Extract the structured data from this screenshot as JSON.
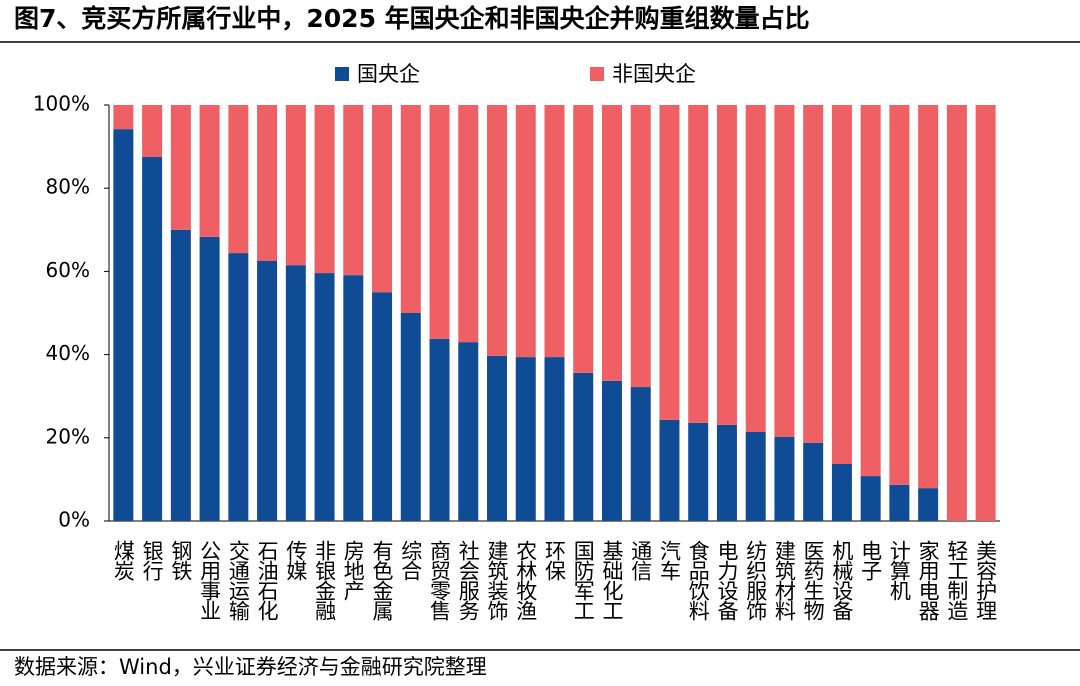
{
  "chart_data": {
    "type": "stacked_bar",
    "title": "图7、竞买方所属行业中，2025 年国央企和非国央企并购重组数量占比",
    "source": "数据来源：Wind，兴业证券经济与金融研究院整理",
    "categories": [
      "煤炭",
      "银行",
      "钢铁",
      "公用事业",
      "交通运输",
      "石油石化",
      "传媒",
      "非银金融",
      "房地产",
      "有色金属",
      "综合",
      "商贸零售",
      "社会服务",
      "建筑装饰",
      "农林牧渔",
      "环保",
      "国防军工",
      "基础化工",
      "通信",
      "汽车",
      "食品饮料",
      "电力设备",
      "纺织服饰",
      "建筑材料",
      "医药生物",
      "机械设备",
      "电子",
      "计算机",
      "家用电器",
      "轻工制造",
      "美容护理"
    ],
    "series": [
      {
        "name": "国央企",
        "color": "#104c96",
        "values": [
          94.2,
          87.5,
          70.0,
          68.3,
          64.4,
          62.5,
          61.5,
          59.6,
          59.1,
          55.0,
          50.0,
          43.8,
          43.0,
          39.7,
          39.4,
          39.4,
          35.6,
          33.7,
          32.2,
          24.3,
          23.6,
          23.1,
          21.4,
          20.2,
          18.8,
          13.7,
          10.8,
          8.7,
          7.9,
          0,
          0
        ]
      },
      {
        "name": "非国央企",
        "color": "#ee6063",
        "values": [
          5.8,
          12.5,
          30.0,
          31.7,
          35.6,
          37.5,
          38.5,
          40.4,
          40.9,
          45.0,
          50.0,
          56.2,
          57.0,
          60.3,
          60.6,
          60.6,
          64.4,
          66.3,
          67.8,
          75.7,
          76.4,
          76.9,
          78.6,
          79.8,
          81.2,
          86.3,
          89.2,
          91.3,
          92.1,
          100,
          100
        ]
      }
    ],
    "ylim": [
      0,
      100
    ],
    "yticks": [
      {
        "value": 0,
        "label": "0%"
      },
      {
        "value": 20,
        "label": "20%"
      },
      {
        "value": 40,
        "label": "40%"
      },
      {
        "value": 60,
        "label": "60%"
      },
      {
        "value": 80,
        "label": "80%"
      },
      {
        "value": 100,
        "label": "100%"
      }
    ],
    "legend": "top"
  }
}
